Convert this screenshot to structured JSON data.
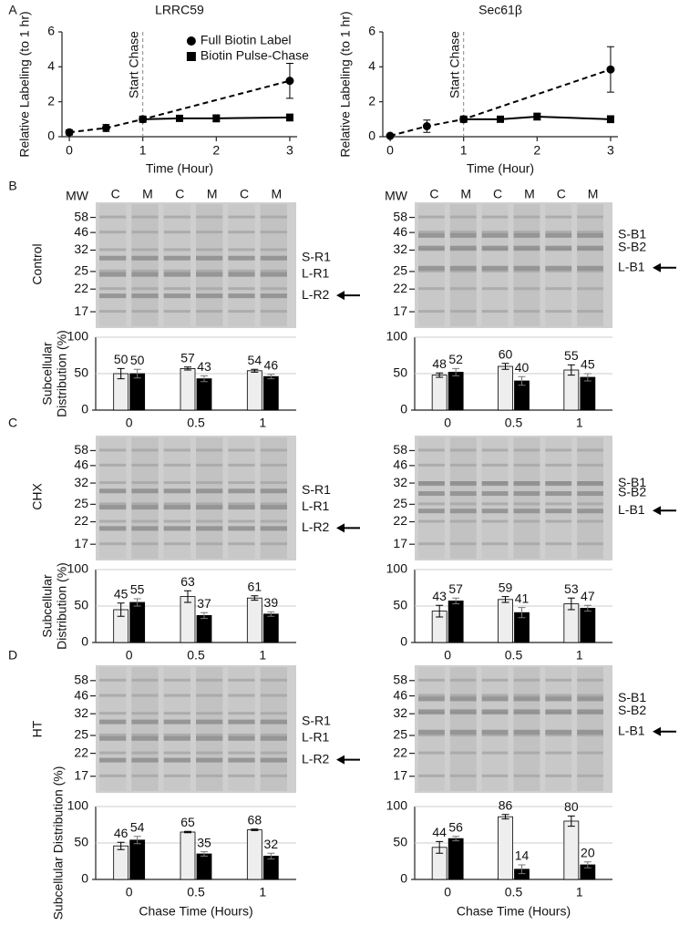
{
  "panels": [
    "A",
    "B",
    "C",
    "D"
  ],
  "rows": [
    "Control",
    "CHX",
    "HT"
  ],
  "gels": [
    {
      "mw_header": "MW",
      "lanes": [
        "C",
        "M",
        "C",
        "M",
        "C",
        "M"
      ],
      "mw": [
        "58",
        "46",
        "32",
        "25",
        "22",
        "17"
      ],
      "bands": [
        "S-R1",
        "L-R1",
        "L-R2"
      ]
    },
    {
      "mw_header": "MW",
      "lanes": [
        "C",
        "M",
        "C",
        "M",
        "C",
        "M"
      ],
      "mw": [
        "58",
        "46",
        "32",
        "25",
        "22",
        "17"
      ],
      "bands": [
        "S-B1",
        "S-B2",
        "L-B1"
      ]
    },
    {
      "mw": [
        "58",
        "46",
        "32",
        "25",
        "22",
        "17"
      ],
      "bands": [
        "S-R1",
        "L-R1",
        "L-R2"
      ]
    },
    {
      "mw": [
        "58",
        "46",
        "32",
        "25",
        "22",
        "17"
      ],
      "bands": [
        "S-B1",
        "S-B2",
        "L-B1"
      ]
    },
    {
      "mw": [
        "58",
        "46",
        "32",
        "25",
        "22",
        "17"
      ],
      "bands": [
        "S-R1",
        "L-R1",
        "L-R2"
      ]
    },
    {
      "mw": [
        "58",
        "46",
        "32",
        "25",
        "22",
        "17"
      ],
      "bands": [
        "S-B1",
        "S-B2",
        "L-B1"
      ]
    }
  ],
  "chart_data": [
    {
      "type": "line",
      "title": "LRRC59",
      "xlabel": "Time (Hour)",
      "ylabel": "Relative Labeling (to 1 hr)",
      "xlim": [
        -0.1,
        3.1
      ],
      "xticks": [
        0,
        1,
        2,
        3
      ],
      "ylim": [
        0,
        6
      ],
      "yticks": [
        0,
        2,
        4,
        6
      ],
      "legend": "upper right",
      "vline": {
        "x": 1,
        "label": "Start Chase"
      },
      "series": [
        {
          "name": "Full Biotin Label",
          "color": "#000000",
          "marker": "circle",
          "dashed": true,
          "x": [
            0,
            0.5,
            1,
            3
          ],
          "values": [
            0.25,
            0.5,
            1,
            3.2
          ],
          "errors": [
            0.15,
            0.2,
            0.05,
            1.0
          ]
        },
        {
          "name": "Biotin Pulse-Chase",
          "color": "#000000",
          "marker": "square",
          "dashed": false,
          "x": [
            1,
            1.5,
            2,
            3
          ],
          "values": [
            1,
            1.05,
            1.05,
            1.1
          ],
          "errors": [
            0.05,
            0.1,
            0.2,
            0.2
          ]
        }
      ]
    },
    {
      "type": "line",
      "title": "Sec61β",
      "xlabel": "Time (Hour)",
      "ylabel": "Relative Labeling (to 1 hr)",
      "xlim": [
        -0.1,
        3.1
      ],
      "xticks": [
        0,
        1,
        2,
        3
      ],
      "ylim": [
        0,
        6
      ],
      "yticks": [
        0,
        2,
        4,
        6
      ],
      "vline": {
        "x": 1,
        "label": "Start Chase"
      },
      "series": [
        {
          "color": "#000000",
          "marker": "circle",
          "dashed": true,
          "x": [
            0,
            0.5,
            1,
            3
          ],
          "values": [
            0.05,
            0.6,
            1,
            3.85
          ],
          "errors": [
            0.05,
            0.35,
            0.05,
            1.3
          ]
        },
        {
          "color": "#000000",
          "marker": "square",
          "dashed": false,
          "x": [
            1,
            1.5,
            2,
            3
          ],
          "values": [
            1,
            1,
            1.15,
            1.0
          ],
          "errors": [
            0.05,
            0.08,
            0.2,
            0.2
          ]
        }
      ]
    },
    {
      "type": "bar",
      "ylabel": [
        "Subcellular",
        "Distribution (%)"
      ],
      "categories": [
        "0",
        "0.5",
        "1"
      ],
      "ylim": [
        0,
        100
      ],
      "yticks": [
        0,
        50,
        100
      ],
      "grid": true,
      "series": [
        {
          "color": "#eeeeee",
          "values": [
            50,
            57,
            54
          ],
          "errors": [
            7,
            2,
            2
          ]
        },
        {
          "color": "#000000",
          "values": [
            50,
            43,
            46
          ],
          "errors": [
            6,
            4,
            3
          ]
        }
      ]
    },
    {
      "type": "bar",
      "categories": [
        "0",
        "0.5",
        "1"
      ],
      "ylim": [
        0,
        100
      ],
      "yticks": [
        0,
        50,
        100
      ],
      "grid": true,
      "series": [
        {
          "color": "#eeeeee",
          "values": [
            48,
            60,
            55
          ],
          "errors": [
            3,
            4,
            7
          ]
        },
        {
          "color": "#000000",
          "values": [
            52,
            40,
            45
          ],
          "errors": [
            5,
            6,
            5
          ]
        }
      ]
    },
    {
      "type": "bar",
      "ylabel": [
        "Subcellular",
        "Distribution (%)"
      ],
      "categories": [
        "0",
        "0.5",
        "1"
      ],
      "ylim": [
        0,
        100
      ],
      "yticks": [
        0,
        50,
        100
      ],
      "grid": true,
      "series": [
        {
          "color": "#eeeeee",
          "values": [
            45,
            63,
            61
          ],
          "errors": [
            9,
            8,
            3
          ]
        },
        {
          "color": "#000000",
          "values": [
            55,
            37,
            39
          ],
          "errors": [
            5,
            4,
            3
          ]
        }
      ]
    },
    {
      "type": "bar",
      "categories": [
        "0",
        "0.5",
        "1"
      ],
      "ylim": [
        0,
        100
      ],
      "yticks": [
        0,
        50,
        100
      ],
      "grid": true,
      "series": [
        {
          "color": "#eeeeee",
          "values": [
            43,
            59,
            53
          ],
          "errors": [
            8,
            4,
            8
          ]
        },
        {
          "color": "#000000",
          "values": [
            57,
            41,
            47
          ],
          "errors": [
            4,
            7,
            4
          ]
        }
      ]
    },
    {
      "type": "bar",
      "ylabel": "Subcellular Distribution (%)",
      "xlabel": "Chase Time (Hours)",
      "categories": [
        "0",
        "0.5",
        "1"
      ],
      "ylim": [
        0,
        100
      ],
      "yticks": [
        0,
        50,
        100
      ],
      "grid": true,
      "series": [
        {
          "color": "#eeeeee",
          "values": [
            46,
            65,
            68
          ],
          "errors": [
            5,
            1,
            1
          ]
        },
        {
          "color": "#000000",
          "values": [
            54,
            35,
            32
          ],
          "errors": [
            5,
            3,
            4
          ]
        }
      ]
    },
    {
      "type": "bar",
      "xlabel": "Chase Time (Hours)",
      "categories": [
        "0",
        "0.5",
        "1"
      ],
      "ylim": [
        0,
        100
      ],
      "yticks": [
        0,
        50,
        100
      ],
      "grid": true,
      "series": [
        {
          "color": "#eeeeee",
          "values": [
            44,
            86,
            80
          ],
          "errors": [
            8,
            3,
            7
          ]
        },
        {
          "color": "#000000",
          "values": [
            56,
            14,
            20
          ],
          "errors": [
            3,
            6,
            4
          ]
        }
      ]
    }
  ]
}
